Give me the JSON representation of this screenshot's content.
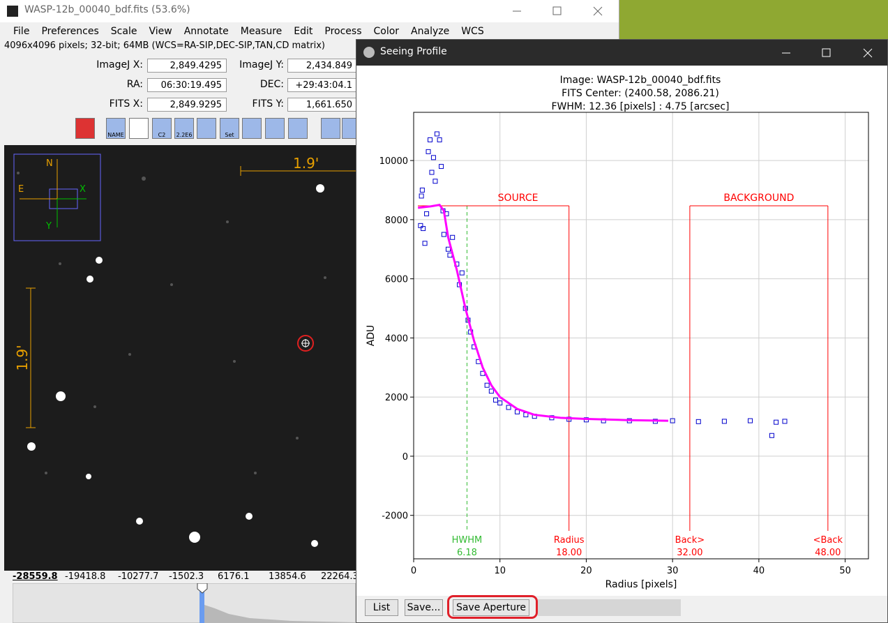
{
  "image_window": {
    "title": "WASP-12b_00040_bdf.fits (53.6%)",
    "menu": [
      "File",
      "Preferences",
      "Scale",
      "View",
      "Annotate",
      "Measure",
      "Edit",
      "Process",
      "Color",
      "Analyze",
      "WCS"
    ],
    "info": "4096x4096 pixels; 32-bit; 64MB (WCS=RA-SIP,DEC-SIP,TAN,CD matrix)",
    "fields": [
      {
        "label": "ImageJ X:",
        "value": "2,849.4295"
      },
      {
        "label": "ImageJ Y:",
        "value": "2,434.849"
      },
      {
        "label": "RA:",
        "value": "06:30:19.495"
      },
      {
        "label": "DEC:",
        "value": "+29:43:04.1"
      },
      {
        "label": "FITS X:",
        "value": "2,849.9295"
      },
      {
        "label": "FITS Y:",
        "value": "1,661.650"
      }
    ],
    "toolbar_labels": [
      "NAME",
      "C2",
      "2.2E6",
      "Set"
    ],
    "compass": {
      "north": "N",
      "east": "E",
      "x": "X",
      "y": "Y"
    },
    "scale_label": "1.9'",
    "histogram_labels": [
      "-28559.8",
      "-19418.8",
      "-10277.7",
      "-1502.3",
      "6176.1",
      "13854.6",
      "22264.3"
    ]
  },
  "profile_window": {
    "title": "Seeing Profile",
    "buttons": [
      "List",
      "Save...",
      "Save Aperture"
    ],
    "chart_data": {
      "type": "scatter",
      "title_lines": [
        "Image: WASP-12b_00040_bdf.fits",
        "FITS Center: (2400.58,  2086.21)",
        "FWHM: 12.36 [pixels] : 4.75 [arcsec]"
      ],
      "xlabel": "Radius [pixels]",
      "ylabel": "ADU",
      "xlim": [
        0,
        52.7
      ],
      "ylim": [
        -3470,
        11630
      ],
      "xticks": [
        0,
        10,
        20,
        30,
        40,
        50
      ],
      "yticks": [
        -2000,
        0,
        2000,
        4000,
        6000,
        8000,
        10000
      ],
      "grid": true,
      "series": [
        {
          "name": "data",
          "color": "#0000cc",
          "x": [
            0.8,
            0.9,
            1.0,
            1.1,
            1.3,
            1.5,
            1.7,
            1.9,
            2.1,
            2.3,
            2.5,
            2.7,
            3.0,
            3.2,
            3.4,
            3.5,
            3.8,
            4.0,
            4.2,
            4.5,
            5.0,
            5.3,
            5.6,
            6.0,
            6.3,
            6.6,
            7.0,
            7.5,
            8.0,
            8.5,
            9.0,
            9.5,
            10,
            11,
            12,
            13,
            14,
            16,
            18,
            20,
            22,
            25,
            28,
            30,
            33,
            36,
            39,
            41.5,
            42,
            43
          ],
          "values": [
            7800,
            8800,
            9000,
            7700,
            7200,
            8200,
            10300,
            10700,
            9600,
            10100,
            9300,
            10900,
            10700,
            9800,
            8300,
            7500,
            8200,
            7000,
            6800,
            7400,
            6500,
            5800,
            6200,
            5000,
            4600,
            4200,
            3700,
            3200,
            2800,
            2400,
            2200,
            1900,
            1800,
            1650,
            1500,
            1400,
            1350,
            1300,
            1250,
            1230,
            1200,
            1200,
            1180,
            1200,
            1170,
            1180,
            1200,
            700,
            1150,
            1180
          ]
        },
        {
          "name": "fit",
          "color": "#ff00ff",
          "line": true,
          "x": [
            0.5,
            2,
            3,
            3.5,
            4,
            5,
            6,
            7,
            8,
            9,
            10,
            12,
            14,
            17,
            20,
            25,
            29.5
          ],
          "values": [
            8400,
            8450,
            8500,
            8300,
            7400,
            6300,
            5000,
            3900,
            3000,
            2400,
            2000,
            1600,
            1400,
            1300,
            1260,
            1220,
            1200
          ]
        }
      ],
      "regions": [
        {
          "label": "SOURCE"
        },
        {
          "label": "BACKGROUND"
        }
      ],
      "markers": [
        {
          "label": "HWHM",
          "value": 6.18,
          "value_label": "6.18",
          "color": "#33bb33"
        },
        {
          "label": "Radius",
          "value": 18,
          "value_label": "18.00",
          "color": "#ff0000"
        },
        {
          "label": "Back>",
          "value": 32,
          "value_label": "32.00",
          "color": "#ff0000"
        },
        {
          "label": "<Back",
          "value": 48,
          "value_label": "48.00",
          "color": "#ff0000"
        }
      ]
    }
  }
}
